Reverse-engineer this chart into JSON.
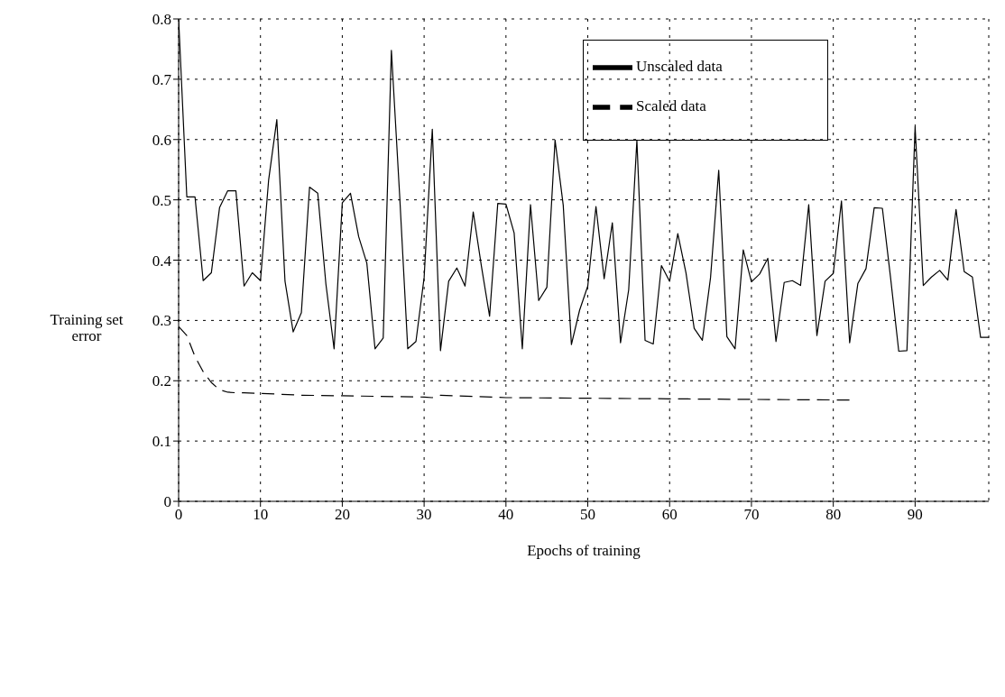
{
  "chart_data": {
    "type": "line",
    "xlabel": "Epochs of training",
    "ylabel": "Training set error",
    "x": [
      0,
      1,
      2,
      3,
      4,
      5,
      6,
      7,
      8,
      9,
      10,
      11,
      12,
      13,
      14,
      15,
      16,
      17,
      18,
      19,
      20,
      21,
      22,
      23,
      24,
      25,
      26,
      27,
      28,
      29,
      30,
      31,
      32,
      33,
      34,
      35,
      36,
      37,
      38,
      39,
      40,
      41,
      42,
      43,
      44,
      45,
      46,
      47,
      48,
      49,
      50,
      51,
      52,
      53,
      54,
      55,
      56,
      57,
      58,
      59,
      60,
      61,
      62,
      63,
      64,
      65,
      66,
      67,
      68,
      69,
      70,
      71,
      72,
      73,
      74,
      75,
      76,
      77,
      78,
      79,
      80,
      81,
      82,
      83,
      84,
      85,
      86,
      87,
      88,
      89,
      90,
      91,
      92,
      93,
      94,
      95,
      96,
      97,
      98,
      99
    ],
    "series": [
      {
        "name": "Unscaled data",
        "color": "#000000",
        "line_style": "solid",
        "values": [
          0.8,
          0.505,
          0.505,
          0.366,
          0.379,
          0.487,
          0.515,
          0.515,
          0.357,
          0.379,
          0.366,
          0.533,
          0.633,
          0.365,
          0.281,
          0.313,
          0.521,
          0.511,
          0.36,
          0.253,
          0.495,
          0.511,
          0.439,
          0.395,
          0.253,
          0.271,
          0.748,
          0.51,
          0.253,
          0.265,
          0.371,
          0.617,
          0.25,
          0.365,
          0.387,
          0.357,
          0.48,
          0.39,
          0.307,
          0.494,
          0.493,
          0.445,
          0.253,
          0.492,
          0.333,
          0.355,
          0.599,
          0.491,
          0.26,
          0.317,
          0.357,
          0.489,
          0.369,
          0.462,
          0.263,
          0.351,
          0.599,
          0.267,
          0.261,
          0.391,
          0.365,
          0.444,
          0.379,
          0.287,
          0.267,
          0.371,
          0.549,
          0.273,
          0.253,
          0.417,
          0.364,
          0.377,
          0.403,
          0.265,
          0.363,
          0.366,
          0.358,
          0.492,
          0.275,
          0.365,
          0.378,
          0.498,
          0.263,
          0.361,
          0.386,
          0.487,
          0.486,
          0.371,
          0.249,
          0.25,
          0.621,
          0.358,
          0.372,
          0.383,
          0.367,
          0.484,
          0.381,
          0.372,
          0.272,
          0.272
        ]
      },
      {
        "name": "Scaled data",
        "color": "#000000",
        "line_style": "dashed",
        "x": [
          0,
          1,
          2,
          3,
          4,
          5,
          6,
          7,
          8,
          10,
          15,
          20,
          30,
          31,
          32,
          40,
          50,
          60,
          70,
          82
        ],
        "values": [
          0.29,
          0.275,
          0.24,
          0.215,
          0.197,
          0.185,
          0.181,
          0.18,
          0.18,
          0.179,
          0.176,
          0.175,
          0.173,
          0.172,
          0.176,
          0.172,
          0.171,
          0.17,
          0.169,
          0.168
        ]
      }
    ],
    "xlim": [
      0,
      99
    ],
    "xticks": [
      0,
      10,
      20,
      30,
      40,
      50,
      60,
      70,
      80,
      90
    ],
    "ylim": [
      0,
      0.8
    ],
    "yticks": [
      0,
      0.1,
      0.2,
      0.3,
      0.4,
      0.5,
      0.6,
      0.7,
      0.8
    ],
    "grid": true,
    "legend": "top right",
    "marker": "none"
  }
}
